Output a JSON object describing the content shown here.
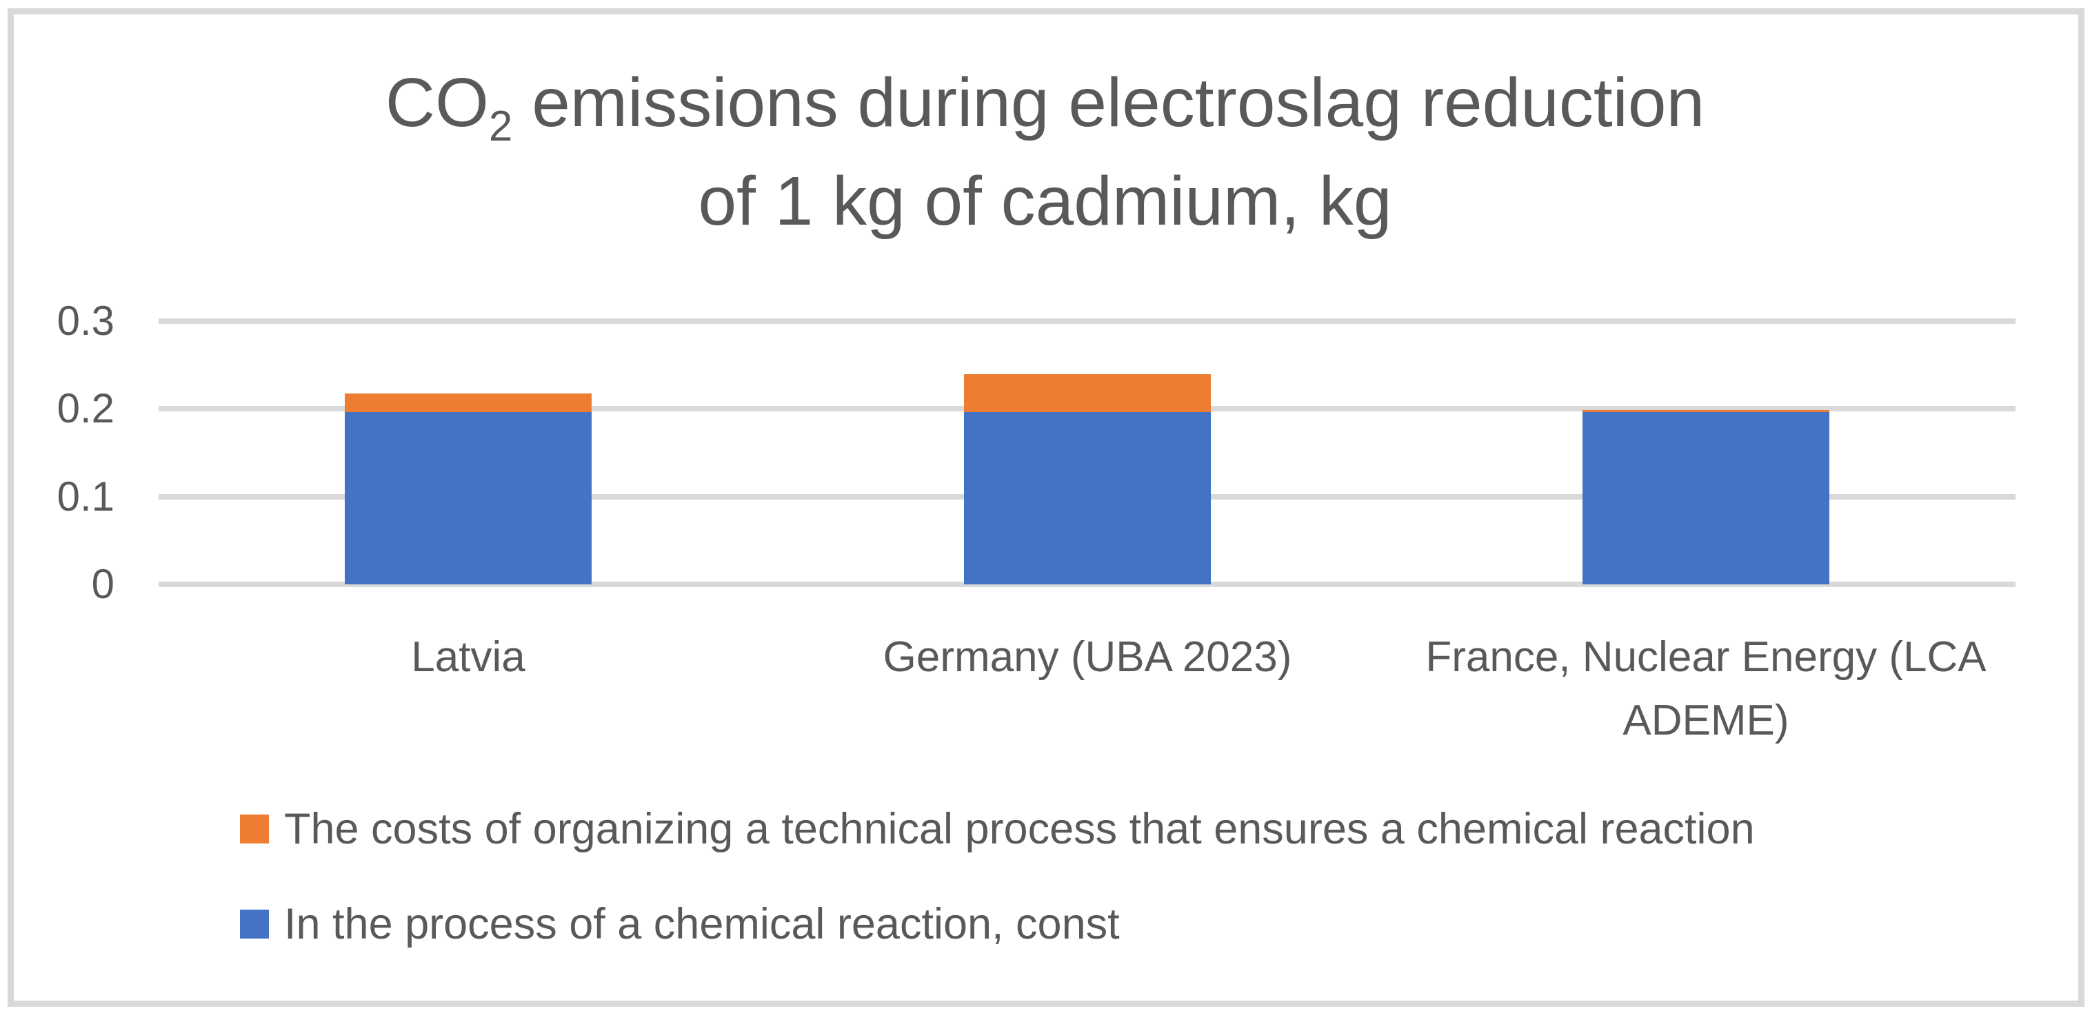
{
  "colors": {
    "text": "#595959",
    "grid": "#D9D9D9",
    "border": "#D9D9D9",
    "background": "#FFFFFF",
    "series_blue": "#4472C4",
    "series_orange": "#ED7D31"
  },
  "title": {
    "line1_pre": "CO",
    "line1_sub": "2",
    "line1_post": " emissions during electroslag reduction",
    "line2": "of 1 kg of cadmium, kg"
  },
  "chart_data": {
    "type": "bar",
    "stacked": true,
    "title": "CO2 emissions during electroslag reduction of 1 kg of cadmium, kg",
    "categories": [
      "Latvia",
      "Germany (UBA 2023)",
      "France, Nuclear Energy (LCA ADEME)"
    ],
    "series": [
      {
        "name": "In the process of a chemical reaction, const",
        "color": "#4472C4",
        "values": [
          0.196,
          0.196,
          0.196
        ]
      },
      {
        "name": "The costs of organizing a technical process that ensures a chemical reaction",
        "color": "#ED7D31",
        "values": [
          0.021,
          0.043,
          0.002
        ]
      }
    ],
    "totals_approx": [
      0.217,
      0.239,
      0.198
    ],
    "xlabel": "",
    "ylabel": "",
    "ylim": [
      0,
      0.3
    ],
    "yticks": [
      {
        "value": 0,
        "label": "0"
      },
      {
        "value": 0.1,
        "label": "0.1"
      },
      {
        "value": 0.2,
        "label": "0.2"
      },
      {
        "value": 0.3,
        "label": "0.3"
      }
    ],
    "grid": true,
    "legend_position": "bottom-left",
    "legend_order": [
      1,
      0
    ]
  }
}
